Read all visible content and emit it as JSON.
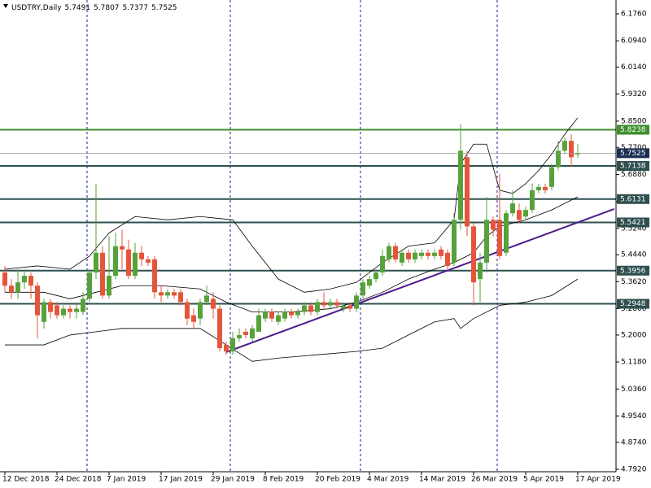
{
  "chart_data": {
    "type": "candlestick",
    "title": "USDTRY,Daily",
    "categories": [
      "12 Dec 2018",
      null,
      null,
      null,
      null,
      null,
      null,
      null,
      "24 Dec 2018",
      null,
      null,
      null,
      null,
      null,
      null,
      null,
      "7 Jan 2019",
      null,
      null,
      null,
      null,
      null,
      null,
      null,
      "17 Jan 2019",
      null,
      null,
      null,
      null,
      null,
      null,
      null,
      "29 Jan 2019",
      null,
      null,
      null,
      null,
      null,
      null,
      null,
      "8 Feb 2019",
      null,
      null,
      null,
      null,
      null,
      null,
      null,
      "20 Feb 2019",
      null,
      null,
      null,
      null,
      null,
      null,
      null,
      "4 Mar 2019",
      null,
      null,
      null,
      null,
      null,
      null,
      null,
      "14 Mar 2019",
      null,
      null,
      null,
      null,
      null,
      null,
      null,
      "26 Mar 2019",
      null,
      null,
      null,
      null,
      null,
      null,
      null,
      "5 Apr 2019",
      null,
      null,
      null,
      null,
      null,
      null,
      null,
      "17 Apr 2019"
    ],
    "open": [
      5.39,
      5.35,
      5.33,
      5.36,
      5.38,
      5.35,
      5.24,
      5.3,
      5.29,
      5.26,
      5.28,
      5.27,
      5.27,
      5.31,
      5.39,
      5.45,
      5.32,
      5.38,
      5.47,
      5.46,
      5.38,
      5.45,
      5.43,
      5.43,
      5.33,
      5.32,
      5.33,
      5.33,
      5.3,
      5.26,
      5.25,
      5.3,
      5.31,
      5.28,
      5.17,
      5.15,
      5.19,
      5.21,
      5.19,
      5.21,
      5.25,
      5.27,
      5.24,
      5.25,
      5.27,
      5.26,
      5.27,
      5.29,
      5.27,
      5.3,
      5.29,
      5.3,
      5.28,
      5.29,
      5.28,
      5.32,
      5.35,
      5.37,
      5.39,
      5.43,
      5.47,
      5.42,
      5.45,
      5.43,
      5.44,
      5.45,
      5.44,
      5.46,
      5.45,
      5.42,
      5.55,
      5.74,
      5.53,
      5.37,
      5.42,
      5.55,
      5.55,
      5.45,
      5.57,
      5.58,
      5.56,
      5.58,
      5.64,
      5.65,
      5.65,
      5.71,
      5.76,
      5.79,
      5.7491
    ],
    "high": [
      5.41,
      5.37,
      5.4,
      5.4,
      5.39,
      5.36,
      5.31,
      5.31,
      5.3,
      5.29,
      5.29,
      5.3,
      5.33,
      5.4,
      5.66,
      5.47,
      5.5,
      5.51,
      5.52,
      5.49,
      5.48,
      5.47,
      5.44,
      5.44,
      5.35,
      5.34,
      5.34,
      5.34,
      5.31,
      5.28,
      5.31,
      5.35,
      5.33,
      5.29,
      5.18,
      5.21,
      5.22,
      5.22,
      5.23,
      5.28,
      5.28,
      5.28,
      5.27,
      5.28,
      5.28,
      5.28,
      5.3,
      5.3,
      5.31,
      5.33,
      5.31,
      5.31,
      5.3,
      5.3,
      5.33,
      5.37,
      5.38,
      5.4,
      5.46,
      5.48,
      5.48,
      5.46,
      5.46,
      5.46,
      5.46,
      5.46,
      5.46,
      5.47,
      5.46,
      5.57,
      5.84,
      5.76,
      5.54,
      5.45,
      5.62,
      5.56,
      5.69,
      5.58,
      5.64,
      5.6,
      5.59,
      5.66,
      5.66,
      5.66,
      5.72,
      5.79,
      5.8,
      5.81,
      5.7807
    ],
    "low": [
      5.33,
      5.31,
      5.31,
      5.34,
      5.31,
      5.19,
      5.22,
      5.25,
      5.25,
      5.25,
      5.25,
      5.25,
      5.26,
      5.3,
      5.37,
      5.31,
      5.31,
      5.37,
      5.4,
      5.37,
      5.37,
      5.41,
      5.41,
      5.31,
      5.3,
      5.31,
      5.31,
      5.29,
      5.23,
      5.22,
      5.23,
      5.29,
      5.25,
      5.15,
      5.14,
      5.14,
      5.18,
      5.19,
      5.18,
      5.21,
      5.24,
      5.24,
      5.23,
      5.24,
      5.25,
      5.25,
      5.26,
      5.26,
      5.26,
      5.28,
      5.28,
      5.28,
      5.27,
      5.27,
      5.27,
      5.31,
      5.34,
      5.36,
      5.38,
      5.42,
      5.42,
      5.41,
      5.42,
      5.42,
      5.43,
      5.43,
      5.43,
      5.43,
      5.4,
      5.41,
      5.52,
      5.5,
      5.29,
      5.3,
      5.39,
      5.5,
      5.43,
      5.44,
      5.56,
      5.54,
      5.55,
      5.57,
      5.63,
      5.63,
      5.64,
      5.7,
      5.75,
      5.71,
      5.7377
    ],
    "close": [
      5.35,
      5.33,
      5.36,
      5.38,
      5.35,
      5.26,
      5.3,
      5.27,
      5.26,
      5.28,
      5.27,
      5.28,
      5.31,
      5.39,
      5.45,
      5.32,
      5.38,
      5.47,
      5.46,
      5.38,
      5.45,
      5.43,
      5.42,
      5.33,
      5.32,
      5.33,
      5.32,
      5.3,
      5.25,
      5.24,
      5.3,
      5.32,
      5.28,
      5.16,
      5.15,
      5.19,
      5.2,
      5.2,
      5.22,
      5.26,
      5.27,
      5.25,
      5.26,
      5.27,
      5.26,
      5.27,
      5.29,
      5.27,
      5.3,
      5.29,
      5.3,
      5.29,
      5.29,
      5.28,
      5.32,
      5.36,
      5.37,
      5.39,
      5.44,
      5.47,
      5.43,
      5.45,
      5.43,
      5.45,
      5.45,
      5.44,
      5.45,
      5.44,
      5.41,
      5.55,
      5.76,
      5.53,
      5.36,
      5.42,
      5.55,
      5.52,
      5.44,
      5.57,
      5.6,
      5.55,
      5.58,
      5.64,
      5.65,
      5.64,
      5.71,
      5.76,
      5.79,
      5.74,
      5.7525
    ],
    "up_color": "#56a23a",
    "down_color": "#e4553a",
    "last_price_color": "#1c2f52",
    "bands": [
      {
        "color": "#000000",
        "x": [
          0,
          5,
          10,
          13,
          16,
          20,
          25,
          30,
          35,
          38,
          42,
          46,
          50,
          54,
          58,
          62,
          66,
          69,
          70,
          72,
          74,
          76,
          78,
          80,
          82,
          84,
          86,
          88
        ],
        "values": [
          5.4,
          5.41,
          5.4,
          5.44,
          5.51,
          5.56,
          5.55,
          5.56,
          5.55,
          5.47,
          5.37,
          5.33,
          5.34,
          5.36,
          5.42,
          5.47,
          5.48,
          5.55,
          5.72,
          5.78,
          5.78,
          5.64,
          5.63,
          5.66,
          5.7,
          5.75,
          5.81,
          5.86
        ]
      },
      {
        "color": "#000000",
        "x": [
          0,
          6,
          10,
          14,
          18,
          24,
          30,
          34,
          38,
          44,
          50,
          54,
          58,
          62,
          66,
          69,
          72,
          74,
          76,
          80,
          84,
          88
        ],
        "values": [
          5.33,
          5.33,
          5.31,
          5.33,
          5.35,
          5.35,
          5.34,
          5.3,
          5.27,
          5.27,
          5.28,
          5.3,
          5.33,
          5.37,
          5.4,
          5.42,
          5.45,
          5.5,
          5.53,
          5.55,
          5.58,
          5.62
        ]
      },
      {
        "color": "#000000",
        "x": [
          0,
          6,
          10,
          14,
          18,
          24,
          30,
          34,
          38,
          42,
          48,
          54,
          58,
          62,
          66,
          69,
          70,
          72,
          76,
          80,
          84,
          88
        ],
        "values": [
          5.17,
          5.17,
          5.2,
          5.21,
          5.22,
          5.22,
          5.22,
          5.17,
          5.12,
          5.13,
          5.14,
          5.15,
          5.16,
          5.2,
          5.24,
          5.25,
          5.22,
          5.25,
          5.29,
          5.3,
          5.32,
          5.37
        ]
      }
    ],
    "trendline": {
      "color": "#4d1a8c",
      "x": [
        34,
        93.6
      ],
      "values": [
        5.148,
        5.583
      ]
    },
    "levels": [
      {
        "value": 5.8238,
        "color": "#3f8f2c"
      },
      {
        "value": 5.7138,
        "color": "#2f4f4f"
      },
      {
        "value": 5.6131,
        "color": "#2f4f4f"
      },
      {
        "value": 5.5421,
        "color": "#2f4f4f"
      },
      {
        "value": 5.3956,
        "color": "#2f4f4f"
      },
      {
        "value": 5.2948,
        "color": "#2f4f4f"
      }
    ],
    "ylim": [
      4.7846,
      6.218
    ],
    "yticks": [
      {
        "value": 6.176,
        "label": "6.1760"
      },
      {
        "value": 6.094,
        "label": "6.0940"
      },
      {
        "value": 6.014,
        "label": "6.0140"
      },
      {
        "value": 5.932,
        "label": "5.9320"
      },
      {
        "value": 5.85,
        "label": "5.8500"
      },
      {
        "value": 5.77,
        "label": "5.7700"
      },
      {
        "value": 5.688,
        "label": "5.6880"
      },
      {
        "value": 5.606,
        "label": "5.6060"
      },
      {
        "value": 5.524,
        "label": "5.5240"
      },
      {
        "value": 5.444,
        "label": "5.4440"
      },
      {
        "value": 5.362,
        "label": "5.3620"
      },
      {
        "value": 5.28,
        "label": "5.2800"
      },
      {
        "value": 5.2,
        "label": "5.2000"
      },
      {
        "value": 5.118,
        "label": "5.1180"
      },
      {
        "value": 5.036,
        "label": "5.0360"
      },
      {
        "value": 4.954,
        "label": "4.9540"
      },
      {
        "value": 4.874,
        "label": "4.8740"
      },
      {
        "value": 4.792,
        "label": "4.7920"
      }
    ]
  }
}
